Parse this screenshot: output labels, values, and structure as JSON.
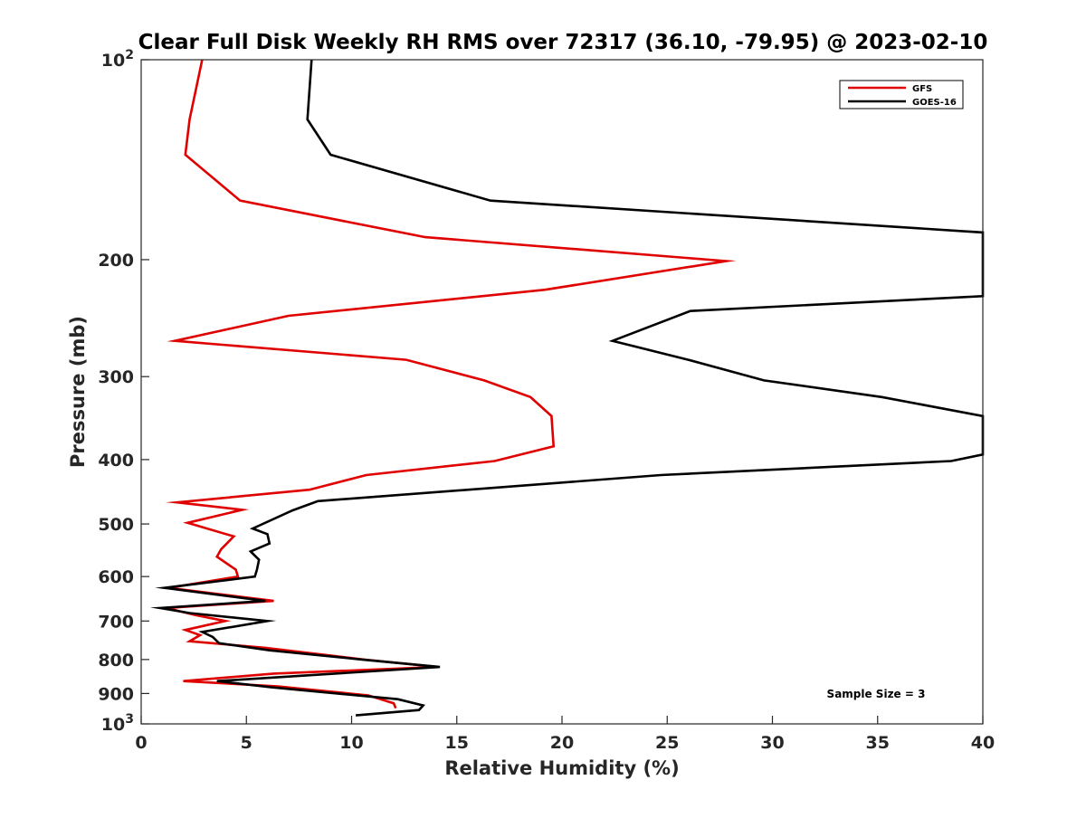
{
  "chart_data": {
    "type": "line",
    "title": "Clear Full Disk Weekly RH RMS over 72317 (36.10, -79.95) @ 2023-02-10",
    "xlabel": "Relative Humidity (%)",
    "ylabel": "Pressure (mb)",
    "xlim": [
      0,
      40
    ],
    "ylim": [
      100,
      1000
    ],
    "y_scale": "log",
    "y_reversed": true,
    "grid": false,
    "legend_position": "top-right",
    "x_ticks": [
      {
        "value": 0,
        "label": "0"
      },
      {
        "value": 5,
        "label": "5"
      },
      {
        "value": 10,
        "label": "10"
      },
      {
        "value": 15,
        "label": "15"
      },
      {
        "value": 20,
        "label": "20"
      },
      {
        "value": 25,
        "label": "25"
      },
      {
        "value": 30,
        "label": "30"
      },
      {
        "value": 35,
        "label": "35"
      },
      {
        "value": 40,
        "label": "40"
      }
    ],
    "y_ticks": [
      {
        "value": 100,
        "base": "10",
        "exp": "2"
      },
      {
        "value": 200,
        "label": "200"
      },
      {
        "value": 300,
        "label": "300"
      },
      {
        "value": 400,
        "label": "400"
      },
      {
        "value": 500,
        "label": "500"
      },
      {
        "value": 600,
        "label": "600"
      },
      {
        "value": 700,
        "label": "700"
      },
      {
        "value": 800,
        "label": "800"
      },
      {
        "value": 900,
        "label": "900"
      },
      {
        "value": 1000,
        "base": "10",
        "exp": "3"
      }
    ],
    "series": [
      {
        "name": "GFS",
        "color": "#e00000",
        "points": [
          [
            2.9,
            100
          ],
          [
            2.3,
            123
          ],
          [
            2.1,
            139
          ],
          [
            4.7,
            163
          ],
          [
            13.5,
            185
          ],
          [
            27.8,
            201
          ],
          [
            19.2,
            222
          ],
          [
            7.0,
            243
          ],
          [
            1.6,
            265
          ],
          [
            12.6,
            283
          ],
          [
            16.3,
            304
          ],
          [
            18.5,
            322
          ],
          [
            19.5,
            344
          ],
          [
            19.6,
            382
          ],
          [
            16.8,
            402
          ],
          [
            10.7,
            422
          ],
          [
            8.0,
            444
          ],
          [
            1.7,
            464
          ],
          [
            4.8,
            476
          ],
          [
            2.2,
            498
          ],
          [
            4.4,
            522
          ],
          [
            3.8,
            546
          ],
          [
            3.6,
            560
          ],
          [
            4.5,
            586
          ],
          [
            4.6,
            600
          ],
          [
            1.3,
            624
          ],
          [
            6.3,
            653
          ],
          [
            1.2,
            669
          ],
          [
            2.6,
            686
          ],
          [
            4.0,
            700
          ],
          [
            2.1,
            722
          ],
          [
            2.8,
            735
          ],
          [
            2.3,
            751
          ],
          [
            5.9,
            768
          ],
          [
            10.6,
            800
          ],
          [
            14.1,
            821
          ],
          [
            6.3,
            840
          ],
          [
            2.0,
            862
          ],
          [
            6.5,
            878
          ],
          [
            10.8,
            906
          ],
          [
            12.0,
            931
          ],
          [
            12.1,
            947
          ]
        ]
      },
      {
        "name": "GOES-16",
        "color": "#000000",
        "points": [
          [
            8.1,
            100
          ],
          [
            7.9,
            123
          ],
          [
            9.0,
            139
          ],
          [
            16.6,
            163
          ],
          [
            40.0,
            182
          ],
          [
            40.0,
            227
          ],
          [
            26.1,
            239
          ],
          [
            22.4,
            265
          ],
          [
            26.0,
            283
          ],
          [
            29.6,
            304
          ],
          [
            35.2,
            322
          ],
          [
            40.0,
            344
          ],
          [
            40.0,
            393
          ],
          [
            38.5,
            402
          ],
          [
            24.7,
            422
          ],
          [
            8.4,
            462
          ],
          [
            7.2,
            477
          ],
          [
            5.3,
            508
          ],
          [
            6.0,
            518
          ],
          [
            6.1,
            535
          ],
          [
            5.2,
            550
          ],
          [
            5.6,
            566
          ],
          [
            5.5,
            586
          ],
          [
            5.4,
            600
          ],
          [
            1.1,
            624
          ],
          [
            5.9,
            653
          ],
          [
            0.9,
            669
          ],
          [
            2.3,
            681
          ],
          [
            6.0,
            700
          ],
          [
            2.9,
            727
          ],
          [
            3.4,
            740
          ],
          [
            3.7,
            756
          ],
          [
            6.1,
            775
          ],
          [
            10.5,
            800
          ],
          [
            14.2,
            821
          ],
          [
            3.6,
            862
          ],
          [
            6.2,
            881
          ],
          [
            12.2,
            918
          ],
          [
            13.4,
            938
          ],
          [
            13.2,
            953
          ],
          [
            10.2,
            971
          ]
        ]
      }
    ],
    "annotation": "Sample Size = 3"
  }
}
